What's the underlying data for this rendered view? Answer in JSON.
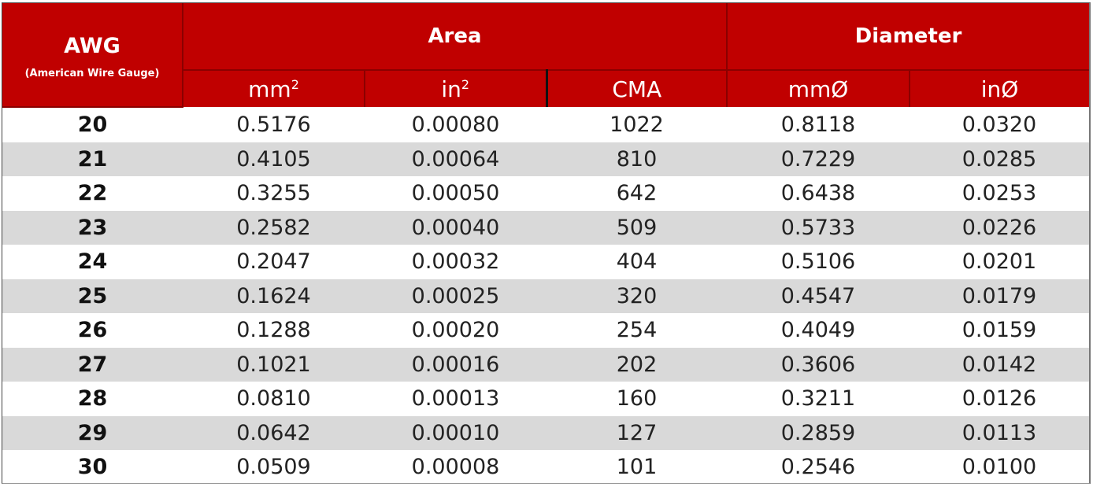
{
  "header": {
    "awg_title": "AWG",
    "awg_subtitle": "(American Wire Gauge)",
    "area_title": "Area",
    "diameter_title": "Diameter",
    "units": {
      "mm2_base": "mm",
      "mm2_exp": "2",
      "in2_base": "in",
      "in2_exp": "2",
      "cma": "CMA",
      "mm_dia": "mmØ",
      "in_dia": "inØ"
    }
  },
  "colors": {
    "header_bg": "#c00000",
    "alt_row_bg": "#d9d9d9"
  },
  "rows": [
    {
      "awg": "20",
      "mm2": "0.5176",
      "in2": "0.00080",
      "cma": "1022",
      "mm_dia": "0.8118",
      "in_dia": "0.0320"
    },
    {
      "awg": "21",
      "mm2": "0.4105",
      "in2": "0.00064",
      "cma": "810",
      "mm_dia": "0.7229",
      "in_dia": "0.0285"
    },
    {
      "awg": "22",
      "mm2": "0.3255",
      "in2": "0.00050",
      "cma": "642",
      "mm_dia": "0.6438",
      "in_dia": "0.0253"
    },
    {
      "awg": "23",
      "mm2": "0.2582",
      "in2": "0.00040",
      "cma": "509",
      "mm_dia": "0.5733",
      "in_dia": "0.0226"
    },
    {
      "awg": "24",
      "mm2": "0.2047",
      "in2": "0.00032",
      "cma": "404",
      "mm_dia": "0.5106",
      "in_dia": "0.0201"
    },
    {
      "awg": "25",
      "mm2": "0.1624",
      "in2": "0.00025",
      "cma": "320",
      "mm_dia": "0.4547",
      "in_dia": "0.0179"
    },
    {
      "awg": "26",
      "mm2": "0.1288",
      "in2": "0.00020",
      "cma": "254",
      "mm_dia": "0.4049",
      "in_dia": "0.0159"
    },
    {
      "awg": "27",
      "mm2": "0.1021",
      "in2": "0.00016",
      "cma": "202",
      "mm_dia": "0.3606",
      "in_dia": "0.0142"
    },
    {
      "awg": "28",
      "mm2": "0.0810",
      "in2": "0.00013",
      "cma": "160",
      "mm_dia": "0.3211",
      "in_dia": "0.0126"
    },
    {
      "awg": "29",
      "mm2": "0.0642",
      "in2": "0.00010",
      "cma": "127",
      "mm_dia": "0.2859",
      "in_dia": "0.0113"
    },
    {
      "awg": "30",
      "mm2": "0.0509",
      "in2": "0.00008",
      "cma": "101",
      "mm_dia": "0.2546",
      "in_dia": "0.0100"
    }
  ]
}
